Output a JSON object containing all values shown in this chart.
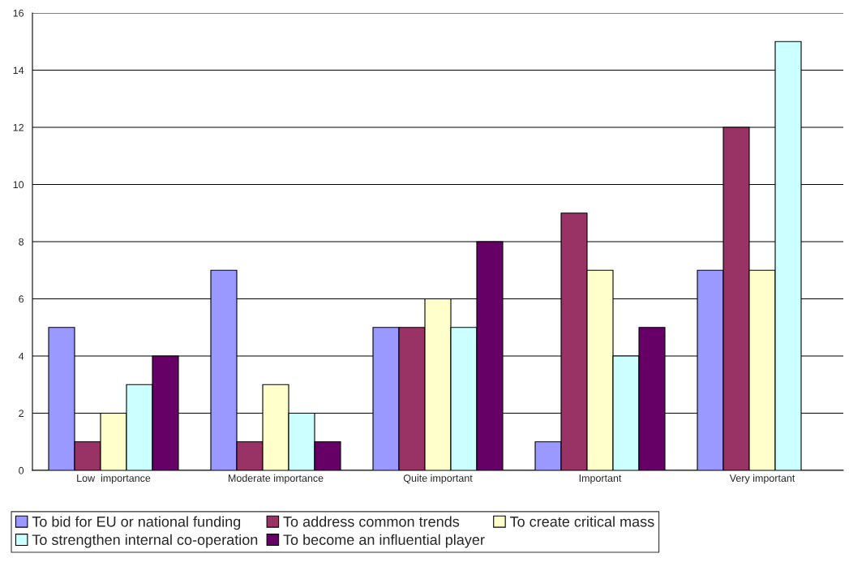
{
  "chart_data": {
    "type": "bar",
    "categories": [
      "Low  importance",
      "Moderate importance",
      "Quite important",
      "Important",
      "Very important"
    ],
    "series": [
      {
        "name": "To bid for EU or national funding",
        "color": "#9999ff",
        "values": [
          5,
          7,
          5,
          1,
          7
        ]
      },
      {
        "name": "To address common trends",
        "color": "#993366",
        "values": [
          1,
          1,
          5,
          9,
          12
        ]
      },
      {
        "name": "To create critical mass",
        "color": "#ffffcc",
        "values": [
          2,
          3,
          6,
          7,
          7
        ]
      },
      {
        "name": "To strengthen internal co-operation",
        "color": "#ccffff",
        "values": [
          3,
          2,
          5,
          4,
          15
        ]
      },
      {
        "name": "To become an influential player",
        "color": "#660066",
        "values": [
          4,
          1,
          8,
          5,
          null
        ]
      }
    ],
    "ylim": [
      0,
      16
    ],
    "yticks": [
      0,
      2,
      4,
      6,
      8,
      10,
      12,
      14,
      16
    ],
    "grid": "y",
    "legend": "bottom"
  }
}
